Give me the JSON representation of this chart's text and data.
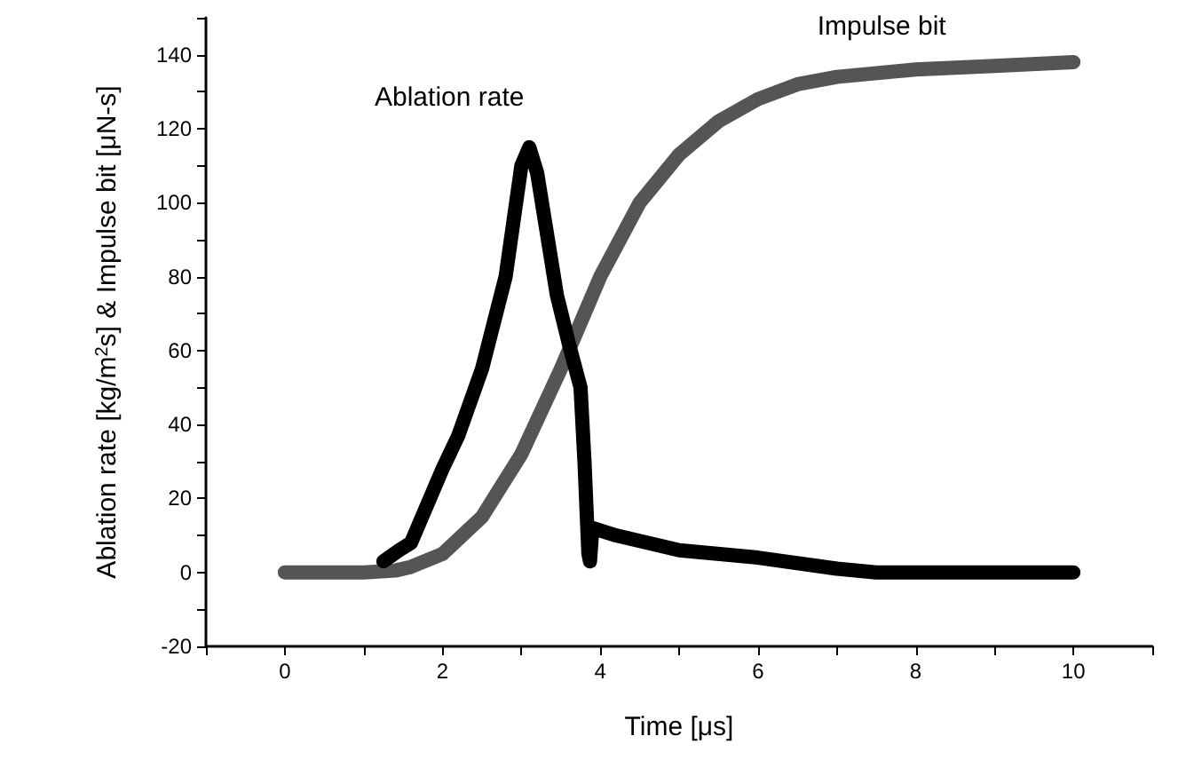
{
  "chart_data": {
    "type": "line",
    "xlabel": "Time [μs]",
    "ylabel": "Ablation rate [kg/m$^{2}$s] & Impulse bit [μN-s]",
    "xlim": [
      -1,
      11
    ],
    "xticks": [
      {
        "value": -1,
        "label": null
      },
      0,
      {
        "value": 1,
        "label": null
      },
      2,
      {
        "value": 3,
        "label": null
      },
      4,
      {
        "value": 5,
        "label": null
      },
      6,
      {
        "value": 7,
        "label": null
      },
      8,
      {
        "value": 9,
        "label": null
      },
      10,
      {
        "value": 11,
        "label": null
      }
    ],
    "ylim": [
      -20,
      150
    ],
    "yticks": [
      -20,
      {
        "value": -10,
        "label": null
      },
      0,
      {
        "value": 10,
        "label": null
      },
      20,
      {
        "value": 30,
        "label": null
      },
      40,
      {
        "value": 50,
        "label": null
      },
      60,
      {
        "value": 70,
        "label": null
      },
      80,
      {
        "value": 90,
        "label": null
      },
      100,
      {
        "value": 110,
        "label": null
      },
      120,
      {
        "value": 130,
        "label": null
      },
      140,
      {
        "value": 150,
        "label": null
      }
    ],
    "grid": false,
    "line_style": "solid",
    "series": [
      {
        "name": "Ablation rate",
        "color": "#000000",
        "x": [
          1.25,
          1.45,
          1.6,
          2.0,
          2.2,
          2.5,
          2.8,
          3.0,
          3.1,
          3.2,
          3.45,
          3.6,
          3.75,
          3.8,
          3.85,
          3.87,
          3.9,
          4.2,
          5.0,
          6.0,
          7.0,
          7.5,
          8.5,
          10.0
        ],
        "values": [
          3,
          6,
          8,
          28,
          37,
          55,
          80,
          110,
          115,
          108,
          75,
          62,
          50,
          30,
          5,
          3,
          12,
          10,
          6,
          4,
          1,
          0,
          0,
          0
        ]
      },
      {
        "name": "Impulse bit",
        "color": "#555555",
        "x": [
          0,
          1.0,
          1.4,
          1.6,
          2.0,
          2.5,
          3.0,
          3.5,
          3.7,
          4.0,
          4.5,
          5.0,
          5.5,
          6.0,
          6.5,
          7.0,
          8.0,
          9.0,
          10.0
        ],
        "values": [
          0,
          0,
          0.5,
          1.5,
          5,
          15,
          32,
          55,
          65,
          80,
          100,
          113,
          122,
          128,
          132,
          134,
          136,
          137,
          138
        ]
      }
    ]
  }
}
